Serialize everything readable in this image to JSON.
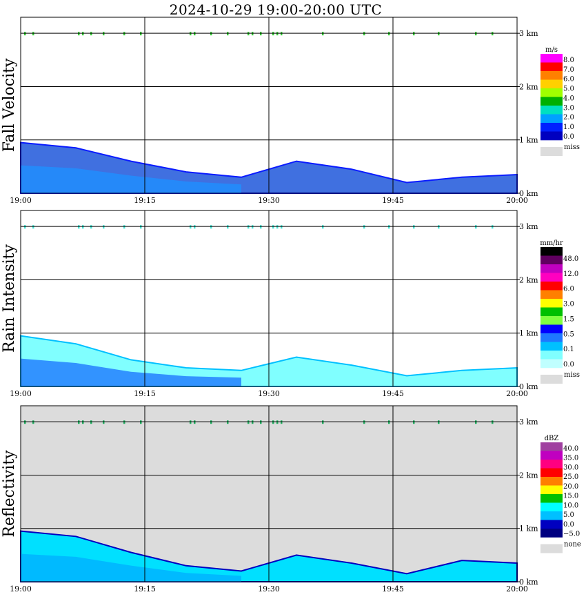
{
  "title": "2024-10-29   19:00-20:00 UTC",
  "chart_data": [
    {
      "type": "heatmap",
      "ylabel": "Fall Velocity",
      "x_ticks": [
        "19:00",
        "19:15",
        "19:30",
        "19:45",
        "20:00"
      ],
      "y_ticks": [
        "0 km",
        "1 km",
        "2 km",
        "3 km"
      ],
      "ylim": [
        0,
        3.3
      ],
      "grid": true,
      "background": "#ffffff",
      "legend_unit": "m/s",
      "legend_labels": [
        "8.0",
        "7.0",
        "6.0",
        "5.0",
        "4.0",
        "3.0",
        "2.0",
        "1.0",
        "0.0"
      ],
      "legend_colors": [
        "#ff00ff",
        "#ff0000",
        "#ff8000",
        "#ffd000",
        "#a0ff00",
        "#00b000",
        "#00e0c0",
        "#00a0ff",
        "#0020ff",
        "#0000c0"
      ],
      "legend_missing": "miss",
      "precip": {
        "fill": "#4070e0",
        "core": "#1e90ff",
        "edge": "#0a1bff",
        "top_km": [
          0.95,
          0.85,
          0.6,
          0.4,
          0.3,
          0.6,
          0.45,
          0.2,
          0.3,
          0.35
        ]
      },
      "cloud_marks": {
        "color": "#33cc33",
        "height_km": 3.0,
        "minutes": [
          0.5,
          1.5,
          7.0,
          7.5,
          8.5,
          10.0,
          12.5,
          14.5,
          20.5,
          21.0,
          23.0,
          25.0,
          27.5,
          28.0,
          29.0,
          30.5,
          31.0,
          31.5,
          36.5,
          41.5,
          44.5,
          47.5,
          50.5,
          55.0,
          57.0
        ]
      }
    },
    {
      "type": "heatmap",
      "ylabel": "Rain Intensity",
      "x_ticks": [
        "19:00",
        "19:15",
        "19:30",
        "19:45",
        "20:00"
      ],
      "y_ticks": [
        "0 km",
        "1 km",
        "2 km",
        "3 km"
      ],
      "ylim": [
        0,
        3.3
      ],
      "grid": true,
      "background": "#ffffff",
      "legend_unit": "mm/hr",
      "legend_labels": [
        "48.0",
        "12.0",
        "6.0",
        "3.0",
        "1.5",
        "0.5",
        "0.1",
        "0.0"
      ],
      "legend_colors": [
        "#000000",
        "#600060",
        "#c000c0",
        "#ff00c0",
        "#ff0000",
        "#ff8000",
        "#ffff00",
        "#00c000",
        "#80ff40",
        "#0000ff",
        "#1e78ff",
        "#00c0ff",
        "#80ffff",
        "#c0ffff"
      ],
      "legend_missing": "miss",
      "precip": {
        "fill": "#80ffff",
        "core": "#1e78ff",
        "edge": "#00c0ff",
        "top_km": [
          0.95,
          0.8,
          0.5,
          0.35,
          0.3,
          0.55,
          0.4,
          0.2,
          0.3,
          0.35
        ]
      },
      "cloud_marks": {
        "color": "#40e0d0",
        "height_km": 3.0,
        "minutes": [
          0.5,
          1.5,
          7.0,
          7.5,
          8.5,
          10.0,
          12.5,
          14.5,
          20.5,
          21.0,
          23.0,
          25.0,
          27.5,
          28.0,
          29.0,
          30.5,
          31.0,
          31.5,
          36.5,
          41.5,
          44.5,
          47.5,
          50.5,
          55.0,
          57.0
        ]
      }
    },
    {
      "type": "heatmap",
      "ylabel": "Reflectivity",
      "x_ticks": [
        "19:00",
        "19:15",
        "19:30",
        "19:45",
        "20:00"
      ],
      "y_ticks": [
        "0 km",
        "1 km",
        "2 km",
        "3 km"
      ],
      "ylim": [
        0,
        3.3
      ],
      "grid": true,
      "background": "#dcdcdc",
      "legend_unit": "dBZ",
      "legend_labels": [
        "40.0",
        "35.0",
        "30.0",
        "25.0",
        "20.0",
        "15.0",
        "10.0",
        "5.0",
        "0.0",
        "−5.0"
      ],
      "legend_colors": [
        "#a040a0",
        "#c000c0",
        "#ff0080",
        "#ff0000",
        "#ff8000",
        "#ffff00",
        "#00c000",
        "#00ffff",
        "#00c0ff",
        "#0000c0",
        "#000080"
      ],
      "legend_missing": "none",
      "precip": {
        "fill": "#00e0ff",
        "core": "#00b0ff",
        "edge": "#0000c0",
        "top_km": [
          0.95,
          0.85,
          0.55,
          0.3,
          0.2,
          0.5,
          0.35,
          0.15,
          0.4,
          0.35
        ]
      },
      "cloud_marks": {
        "color": "#20b060",
        "height_km": 3.0,
        "minutes": [
          0.5,
          1.5,
          7.0,
          7.5,
          8.5,
          10.0,
          12.5,
          14.5,
          20.5,
          21.0,
          23.0,
          25.0,
          27.5,
          28.0,
          29.0,
          30.5,
          31.0,
          31.5,
          36.5,
          41.5,
          44.5,
          47.5,
          50.5,
          55.0,
          57.0
        ]
      }
    }
  ]
}
